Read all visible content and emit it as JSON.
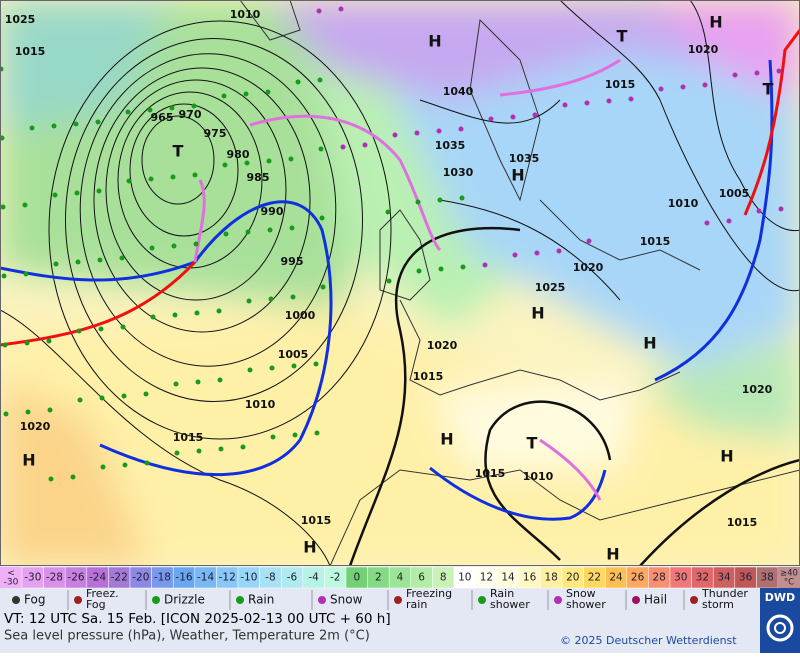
{
  "map": {
    "pressure_labels": [
      "1025",
      "1010",
      "1015",
      "965",
      "970",
      "975",
      "980",
      "985",
      "990",
      "995",
      "1000",
      "1005",
      "1010",
      "1015",
      "1020",
      "1040",
      "1035",
      "1035",
      "1030",
      "1020",
      "1015",
      "1010",
      "1005",
      "1015",
      "1020",
      "1025",
      "1020",
      "1015",
      "1020",
      "1015",
      "1010",
      "1015",
      "1015"
    ],
    "centers": [
      "H",
      "H",
      "T",
      "H",
      "T",
      "H",
      "H",
      "H",
      "T",
      "H",
      "H",
      "H",
      "H",
      "T"
    ]
  },
  "temperature_scale": {
    "below_label": [
      "<",
      "-30"
    ],
    "below_color": "#f0b0f8",
    "values": [
      -30,
      -28,
      -26,
      -24,
      -22,
      -20,
      -18,
      -16,
      -14,
      -12,
      -10,
      -8,
      -6,
      -4,
      -2,
      0,
      2,
      4,
      6,
      8,
      10,
      12,
      14,
      16,
      18,
      20,
      22,
      24,
      26,
      28,
      30,
      32,
      34,
      36,
      38
    ],
    "colors": [
      "#e6a0f0",
      "#d890e8",
      "#c880e0",
      "#b870d8",
      "#a478d4",
      "#8c88e4",
      "#7898ec",
      "#68a8f0",
      "#78b8f4",
      "#88c8f8",
      "#98d6f8",
      "#a6e2f4",
      "#aeeaee",
      "#b6f2e6",
      "#bef8de",
      "#74d074",
      "#86da84",
      "#9ce498",
      "#b2eca6",
      "#caf2b6",
      "#ffffff",
      "#fffff0",
      "#fffddc",
      "#fff8c0",
      "#fff0a0",
      "#ffe880",
      "#ffd860",
      "#ffc050",
      "#ffa860",
      "#f89070",
      "#f07878",
      "#e06868",
      "#d06060",
      "#c05858",
      "#b07070"
    ],
    "above_label": [
      "≥40",
      "°C"
    ],
    "above_color": "#c09090"
  },
  "weather_legend": [
    [
      "Fog"
    ],
    [
      "Freez.",
      "Fog"
    ],
    [
      "Drizzle"
    ],
    [
      "Rain"
    ],
    [
      "Snow"
    ],
    [
      "Freezing",
      "rain"
    ],
    [
      "Rain",
      "shower"
    ],
    [
      "Snow",
      "shower"
    ],
    [
      "Hail"
    ],
    [
      "Thunder",
      "storm"
    ]
  ],
  "footer": {
    "valid_time": "VT: 12 UTC Sa.  15 Feb. [ICON 2025-02-13  00 UTC + 60 h]",
    "description": "Sea level pressure (hPa), Weather, Temperature 2m (°C)",
    "copyright": "© 2025 Deutscher Wetterdienst",
    "logo": "DWD"
  }
}
